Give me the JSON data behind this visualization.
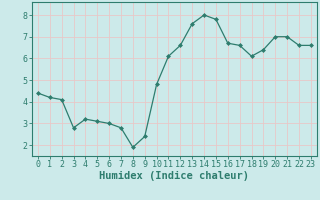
{
  "x": [
    0,
    1,
    2,
    3,
    4,
    5,
    6,
    7,
    8,
    9,
    10,
    11,
    12,
    13,
    14,
    15,
    16,
    17,
    18,
    19,
    20,
    21,
    22,
    23
  ],
  "y": [
    4.4,
    4.2,
    4.1,
    2.8,
    3.2,
    3.1,
    3.0,
    2.8,
    1.9,
    2.4,
    4.8,
    6.1,
    6.6,
    7.6,
    8.0,
    7.8,
    6.7,
    6.6,
    6.1,
    6.4,
    7.0,
    7.0,
    6.6,
    6.6
  ],
  "line_color": "#2e7d6e",
  "marker": "D",
  "marker_size": 2.0,
  "bg_color": "#cceaea",
  "grid_color": "#e8c8c8",
  "xlabel": "Humidex (Indice chaleur)",
  "xlabel_fontsize": 7.5,
  "ylabel_ticks": [
    2,
    3,
    4,
    5,
    6,
    7,
    8
  ],
  "ylim": [
    1.5,
    8.6
  ],
  "xlim": [
    -0.5,
    23.5
  ],
  "tick_fontsize": 6.0,
  "title": ""
}
